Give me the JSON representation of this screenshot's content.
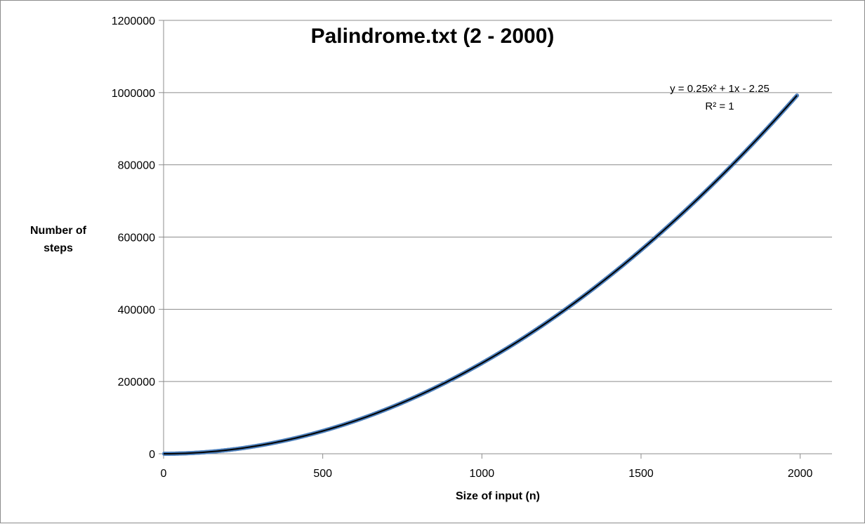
{
  "chart_data": {
    "type": "scatter",
    "title": "Palindrome.txt (2 - 2000)",
    "xlabel": "Size of input (n)",
    "ylabel": [
      "Number of",
      "steps"
    ],
    "xlim": [
      0,
      2100
    ],
    "ylim": [
      0,
      1200000
    ],
    "x_ticks": [
      0,
      500,
      1000,
      1500,
      2000
    ],
    "y_ticks": [
      0,
      200000,
      400000,
      600000,
      800000,
      1000000,
      1200000
    ],
    "x_tick_labels": [
      "0",
      "500",
      "1000",
      "1500",
      "2000"
    ],
    "y_tick_labels": [
      "0",
      "200000",
      "400000",
      "600000",
      "800000",
      "1000000",
      "1200000"
    ],
    "grid": "horizontal",
    "series": [
      {
        "x_range": [
          2,
          1990
        ],
        "x_step": 2,
        "function": "0.25*x^2 + 1*x - 2.25",
        "color": "#4f81bd"
      }
    ],
    "trendline": {
      "type": "polynomial",
      "order": 2,
      "coefficients": [
        0.25,
        1,
        -2.25
      ],
      "color": "#000000",
      "equation_text": "y = 0.25x² + 1x - 2.25",
      "r2_text": "R² = 1"
    }
  },
  "colors": {
    "series": "#4f81bd",
    "trendline": "#000000",
    "grid": "#8c8c8c",
    "axis": "#8c8c8c"
  }
}
